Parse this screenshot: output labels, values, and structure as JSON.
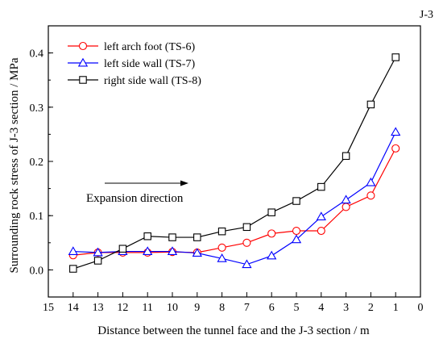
{
  "chart_data": {
    "type": "line",
    "corner_label": "J-3",
    "xlabel": "Distance between the tunnel face and the J-3 section / m",
    "ylabel": "Surrounding rock stress of J-3 section / MPa",
    "xlim": [
      15,
      0
    ],
    "ylim": [
      -0.05,
      0.45
    ],
    "xticks": [
      15,
      14,
      13,
      12,
      11,
      10,
      9,
      8,
      7,
      6,
      5,
      4,
      3,
      2,
      1,
      0
    ],
    "yticks": [
      0.0,
      0.1,
      0.2,
      0.3,
      0.4
    ],
    "ytick_labels": [
      "0.0",
      "0.1",
      "0.2",
      "0.3",
      "0.4"
    ],
    "annotation": "Expansion direction",
    "legend_position": "top-left",
    "grid": false,
    "series": [
      {
        "name": "left arch foot (TS-6)",
        "color": "#ff0000",
        "marker": "circle",
        "x": [
          14,
          13,
          12,
          11,
          10,
          9,
          8,
          7,
          6,
          5,
          4,
          3,
          2,
          1
        ],
        "y": [
          0.027,
          0.032,
          0.032,
          0.032,
          0.033,
          0.032,
          0.041,
          0.05,
          0.067,
          0.072,
          0.072,
          0.116,
          0.137,
          0.224
        ]
      },
      {
        "name": "left side wall (TS-7)",
        "color": "#0000ff",
        "marker": "triangle",
        "x": [
          14,
          13,
          12,
          11,
          10,
          9,
          8,
          7,
          6,
          5,
          4,
          3,
          2,
          1
        ],
        "y": [
          0.034,
          0.032,
          0.034,
          0.034,
          0.034,
          0.031,
          0.021,
          0.01,
          0.026,
          0.056,
          0.098,
          0.129,
          0.161,
          0.254
        ]
      },
      {
        "name": "right side wall (TS-8)",
        "color": "#000000",
        "marker": "square",
        "x": [
          14,
          13,
          12,
          11,
          10,
          9,
          8,
          7,
          6,
          5,
          4,
          3,
          2,
          1
        ],
        "y": [
          0.002,
          0.017,
          0.039,
          0.062,
          0.06,
          0.06,
          0.071,
          0.079,
          0.106,
          0.127,
          0.153,
          0.21,
          0.305,
          0.392
        ]
      }
    ]
  }
}
